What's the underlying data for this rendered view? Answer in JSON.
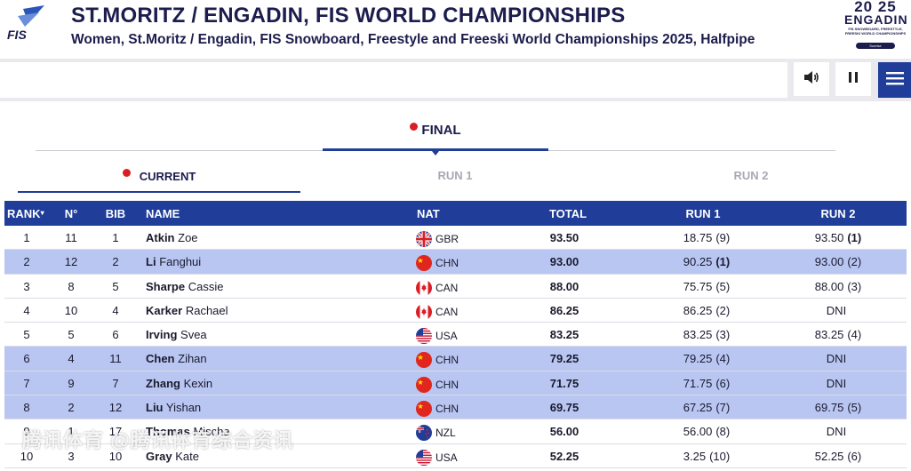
{
  "header": {
    "logo_text": "FIS",
    "title": "ST.MORITZ / ENGADIN, FIS WORLD CHAMPIONSHIPS",
    "subtitle": "Women, St.Moritz / Engadin, FIS Snowboard, Freestyle and Freeski World Championships 2025, Halfpipe",
    "event_logo": {
      "line1": "20 25",
      "line2": "ENGADIN",
      "small": "FIS SNOWBOARD, FREESTYLE, FREESKI WORLD CHAMPIONSHIPS",
      "sponsor": "Sunrise"
    }
  },
  "toolbar": {
    "sound_icon": "speaker-icon",
    "pause_icon": "pause-icon",
    "menu_icon": "hamburger-menu-icon"
  },
  "tabs": {
    "final_label": "FINAL",
    "current_label": "CURRENT",
    "run1_label": "RUN 1",
    "run2_label": "RUN 2"
  },
  "table": {
    "columns": [
      "RANK",
      "N°",
      "BIB",
      "NAME",
      "NAT",
      "TOTAL",
      "RUN 1",
      "RUN 2"
    ],
    "rank_arrow": "▾",
    "rows": [
      {
        "rank": "1",
        "no": "11",
        "bib": "1",
        "last": "Atkin",
        "first": "Zoe",
        "nat": "GBR",
        "total": "93.50",
        "run1": "18.75",
        "run1_rank": "(9)",
        "run2": "93.50",
        "run2_rank": "(1)",
        "highlight": false
      },
      {
        "rank": "2",
        "no": "12",
        "bib": "2",
        "last": "Li",
        "first": "Fanghui",
        "nat": "CHN",
        "total": "93.00",
        "run1": "90.25",
        "run1_rank": "(1)",
        "run2": "93.00",
        "run2_rank": "(2)",
        "highlight": true
      },
      {
        "rank": "3",
        "no": "8",
        "bib": "5",
        "last": "Sharpe",
        "first": "Cassie",
        "nat": "CAN",
        "total": "88.00",
        "run1": "75.75",
        "run1_rank": "(5)",
        "run2": "88.00",
        "run2_rank": "(3)",
        "highlight": false
      },
      {
        "rank": "4",
        "no": "10",
        "bib": "4",
        "last": "Karker",
        "first": "Rachael",
        "nat": "CAN",
        "total": "86.25",
        "run1": "86.25",
        "run1_rank": "(2)",
        "run2": "DNI",
        "run2_rank": "",
        "highlight": false
      },
      {
        "rank": "5",
        "no": "5",
        "bib": "6",
        "last": "Irving",
        "first": "Svea",
        "nat": "USA",
        "total": "83.25",
        "run1": "83.25",
        "run1_rank": "(3)",
        "run2": "83.25",
        "run2_rank": "(4)",
        "highlight": false
      },
      {
        "rank": "6",
        "no": "4",
        "bib": "11",
        "last": "Chen",
        "first": "Zihan",
        "nat": "CHN",
        "total": "79.25",
        "run1": "79.25",
        "run1_rank": "(4)",
        "run2": "DNI",
        "run2_rank": "",
        "highlight": true
      },
      {
        "rank": "7",
        "no": "9",
        "bib": "7",
        "last": "Zhang",
        "first": "Kexin",
        "nat": "CHN",
        "total": "71.75",
        "run1": "71.75",
        "run1_rank": "(6)",
        "run2": "DNI",
        "run2_rank": "",
        "highlight": true
      },
      {
        "rank": "8",
        "no": "2",
        "bib": "12",
        "last": "Liu",
        "first": "Yishan",
        "nat": "CHN",
        "total": "69.75",
        "run1": "67.25",
        "run1_rank": "(7)",
        "run2": "69.75",
        "run2_rank": "(5)",
        "highlight": true
      },
      {
        "rank": "9",
        "no": "1",
        "bib": "17",
        "last": "Thomas",
        "first": "Mischa",
        "nat": "NZL",
        "total": "56.00",
        "run1": "56.00",
        "run1_rank": "(8)",
        "run2": "DNI",
        "run2_rank": "",
        "highlight": false
      },
      {
        "rank": "10",
        "no": "3",
        "bib": "10",
        "last": "Gray",
        "first": "Kate",
        "nat": "USA",
        "total": "52.25",
        "run1": "3.25",
        "run1_rank": "(10)",
        "run2": "52.25",
        "run2_rank": "(6)",
        "highlight": false
      }
    ]
  },
  "watermark": "腾讯体育 @腾讯体育综合资讯",
  "colors": {
    "brand_blue": "#1f3d99",
    "highlight_row": "#b9c6f2",
    "live_red": "#d91f26",
    "navy_text": "#1c1c4d"
  }
}
